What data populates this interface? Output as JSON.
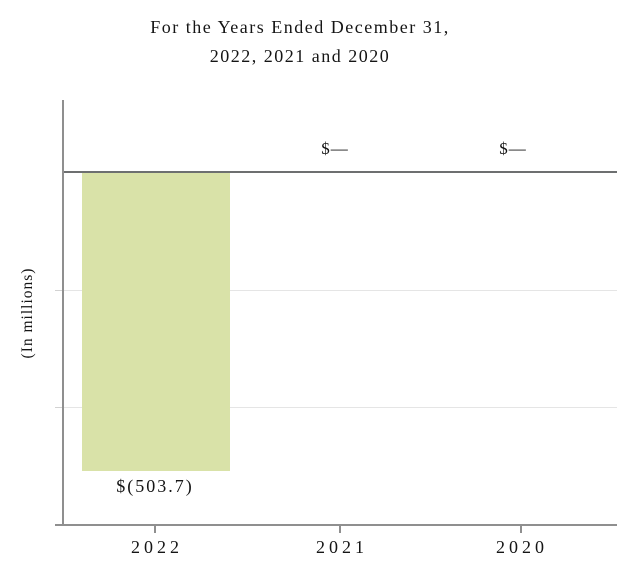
{
  "title": {
    "line1": "For the Years Ended December 31,",
    "line2": "2022, 2021 and 2020"
  },
  "y_axis_label": "(In millions)",
  "chart_data": {
    "type": "bar",
    "title": "For the Years Ended December 31, 2022, 2021 and 2020",
    "categories": [
      "2022",
      "2021",
      "2020"
    ],
    "values": [
      -503.7,
      0,
      0
    ],
    "value_labels": [
      "$(503.7)",
      "$—",
      "$—"
    ],
    "xlabel": "",
    "ylabel": "(In millions)",
    "ylim": [
      -600,
      120
    ],
    "y_gridlines": [
      -200,
      -400
    ],
    "zero_line_value": 0,
    "grid": "horizontal-light",
    "legend_position": "none",
    "bar_color": "#d9e2a8"
  },
  "colors": {
    "bar": "#d9e2a8",
    "zero_line": "#6d6f70",
    "axis": "#8f8f8f",
    "gridline": "#e5e5e5",
    "text": "#151515",
    "background": "#ffffff"
  }
}
